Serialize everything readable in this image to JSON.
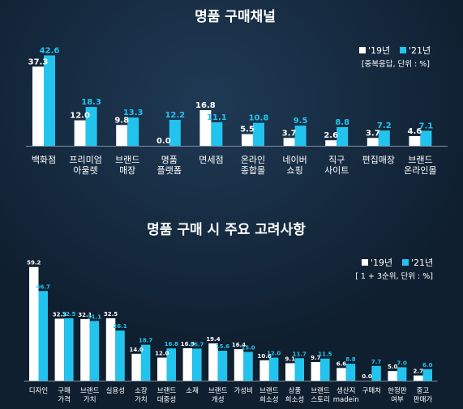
{
  "colors": {
    "background": "#0f1f30",
    "series_2019": "#ffffff",
    "series_2021": "#22c4ee",
    "baseline": "#7d8fa3"
  },
  "chart_data": [
    {
      "type": "bar",
      "title": "명품 구매채널",
      "note": "[중복응답, 단위 : %]",
      "categories": [
        "백화점",
        "프리미엄\n아울렛",
        "브랜드\n매장",
        "명품\n플랫폼",
        "면세점",
        "온라인\n종합몰",
        "네이버\n쇼핑",
        "직구\n사이트",
        "편집매장",
        "브랜드\n온라인몰"
      ],
      "series": [
        {
          "name": "'19년",
          "values": [
            37.3,
            12.0,
            9.8,
            0.0,
            16.8,
            5.5,
            3.7,
            2.6,
            3.7,
            4.6
          ]
        },
        {
          "name": "'21년",
          "values": [
            42.6,
            18.3,
            13.3,
            12.2,
            11.1,
            10.8,
            9.5,
            8.8,
            7.2,
            7.1
          ]
        }
      ],
      "legend_position": "top-right"
    },
    {
      "type": "bar",
      "title": "명품 구매 시 주요 고려사항",
      "note": "[ 1 + 3순위, 단위 : %]",
      "categories": [
        "디자인",
        "구매\n가격",
        "브랜드\n가치",
        "실용성",
        "소장\n가치",
        "브랜드\n대중성",
        "소재",
        "브랜드\n개성",
        "가성비",
        "브랜드\n희소성",
        "상품\n희소성",
        "브랜드\n스토리",
        "생산지\nmadein",
        "구매처",
        "한정판\n여부",
        "중고\n판매가"
      ],
      "series": [
        {
          "name": "'19년",
          "values": [
            59.2,
            32.3,
            32.1,
            32.5,
            14.0,
            12.0,
            16.9,
            19.4,
            16.4,
            10.6,
            9.1,
            9.7,
            6.6,
            0.0,
            5.0,
            2.7
          ]
        },
        {
          "name": "'21년",
          "values": [
            46.7,
            32.5,
            31.1,
            26.1,
            18.7,
            16.8,
            16.7,
            15.6,
            15.0,
            12.0,
            11.7,
            11.5,
            8.8,
            7.7,
            7.0,
            6.0
          ]
        }
      ],
      "legend_position": "top-right"
    }
  ]
}
